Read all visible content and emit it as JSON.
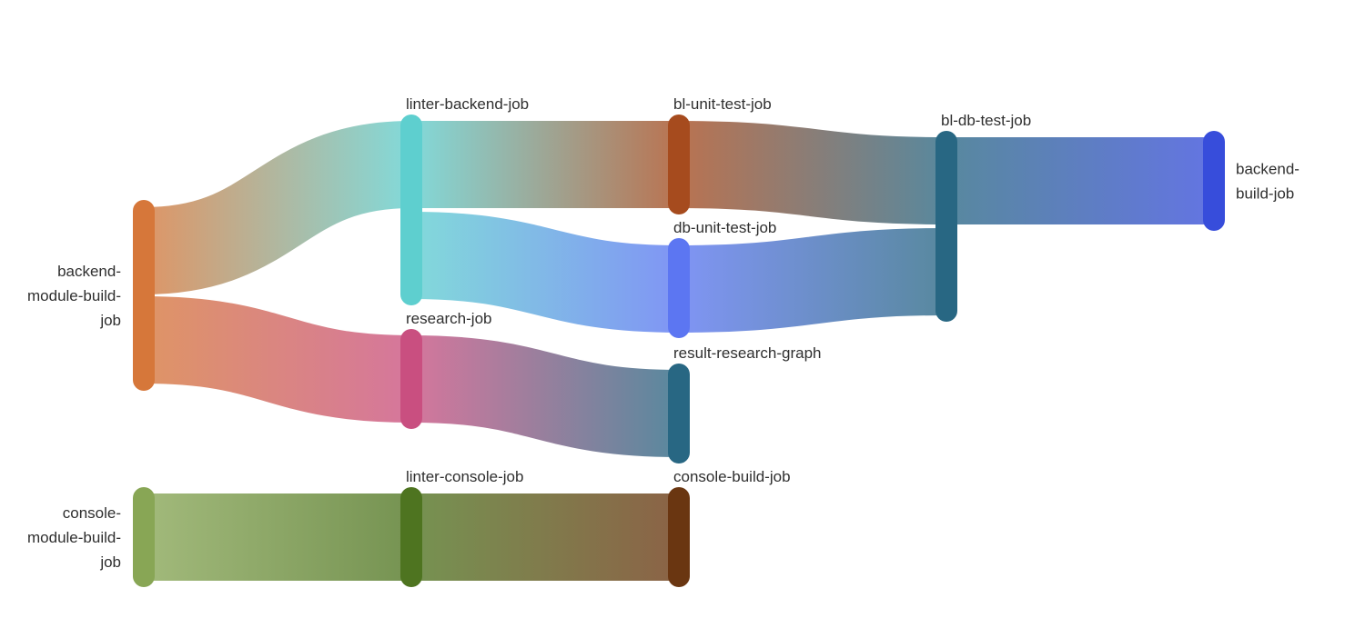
{
  "diagram": {
    "nodes": [
      {
        "id": "backend-module-build-job",
        "label_lines": [
          "backend-",
          "module-build-",
          "job"
        ],
        "color": "#d6773a"
      },
      {
        "id": "linter-backend-job",
        "label_lines": [
          "linter-backend-job"
        ],
        "color": "#5ecfcf"
      },
      {
        "id": "research-job",
        "label_lines": [
          "research-job"
        ],
        "color": "#c94f80"
      },
      {
        "id": "console-module-build-job",
        "label_lines": [
          "console-",
          "module-build-",
          "job"
        ],
        "color": "#88a655"
      },
      {
        "id": "linter-console-job",
        "label_lines": [
          "linter-console-job"
        ],
        "color": "#4e7420"
      },
      {
        "id": "bl-unit-test-job",
        "label_lines": [
          "bl-unit-test-job"
        ],
        "color": "#a64b1e"
      },
      {
        "id": "db-unit-test-job",
        "label_lines": [
          "db-unit-test-job"
        ],
        "color": "#5c76f2"
      },
      {
        "id": "result-research-graph",
        "label_lines": [
          "result-research-graph"
        ],
        "color": "#286783"
      },
      {
        "id": "console-build-job",
        "label_lines": [
          "console-build-job"
        ],
        "color": "#6a3611"
      },
      {
        "id": "bl-db-test-job",
        "label_lines": [
          "bl-db-test-job"
        ],
        "color": "#286783"
      },
      {
        "id": "backend-build-job",
        "label_lines": [
          "backend-",
          "build-job"
        ],
        "color": "#374ddb"
      }
    ],
    "links": [
      {
        "source": "backend-module-build-job",
        "target": "linter-backend-job"
      },
      {
        "source": "backend-module-build-job",
        "target": "research-job"
      },
      {
        "source": "linter-backend-job",
        "target": "bl-unit-test-job"
      },
      {
        "source": "linter-backend-job",
        "target": "db-unit-test-job"
      },
      {
        "source": "research-job",
        "target": "result-research-graph"
      },
      {
        "source": "console-module-build-job",
        "target": "linter-console-job"
      },
      {
        "source": "linter-console-job",
        "target": "console-build-job"
      },
      {
        "source": "bl-unit-test-job",
        "target": "bl-db-test-job"
      },
      {
        "source": "db-unit-test-job",
        "target": "bl-db-test-job"
      },
      {
        "source": "bl-db-test-job",
        "target": "backend-build-job"
      }
    ]
  }
}
